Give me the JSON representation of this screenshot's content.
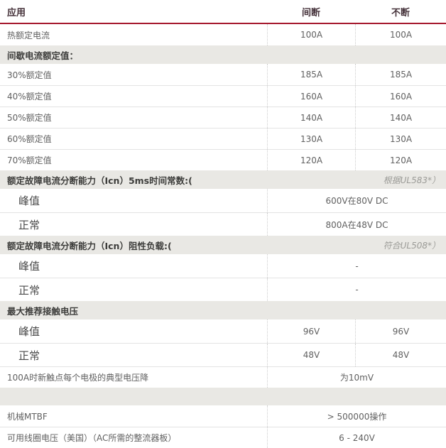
{
  "table": {
    "accent_red": "#a6192e",
    "section_bg": "#e9e8e4",
    "header": {
      "application": "应用",
      "intermittent": "间断",
      "continuous": "不断"
    },
    "rows": [
      {
        "type": "data",
        "label": "热额定电流",
        "values": [
          "100A",
          "100A"
        ]
      },
      {
        "type": "section",
        "label": "间歇电流额定值：",
        "note": ""
      },
      {
        "type": "data",
        "label": "30%额定值",
        "values": [
          "185A",
          "185A"
        ]
      },
      {
        "type": "data",
        "label": "40%额定值",
        "values": [
          "160A",
          "160A"
        ]
      },
      {
        "type": "data",
        "label": "50%额定值",
        "values": [
          "140A",
          "140A"
        ]
      },
      {
        "type": "data",
        "label": "60%额定值",
        "values": [
          "130A",
          "130A"
        ]
      },
      {
        "type": "data",
        "label": "70%额定值",
        "values": [
          "120A",
          "120A"
        ]
      },
      {
        "type": "section",
        "label": "额定故障电流分断能力（Icn）5ms时间常数:(",
        "note": "根据UL583*）"
      },
      {
        "type": "big",
        "label": "峰值",
        "merged": "600V在80V DC"
      },
      {
        "type": "big",
        "label": "正常",
        "merged": "800A在48V DC"
      },
      {
        "type": "section",
        "label": "额定故障电流分断能力（Icn）阻性负载:(",
        "note": "符合UL508*）"
      },
      {
        "type": "big",
        "label": "峰值",
        "merged": "-"
      },
      {
        "type": "big",
        "label": "正常",
        "merged": "-"
      },
      {
        "type": "section",
        "label": "最大推荐接触电压",
        "note": ""
      },
      {
        "type": "big",
        "label": "峰值",
        "values": [
          "96V",
          "96V"
        ]
      },
      {
        "type": "big",
        "label": "正常",
        "values": [
          "48V",
          "48V"
        ]
      },
      {
        "type": "data",
        "label": "100A时新触点每个电极的典型电压降",
        "merged": "为10mV"
      },
      {
        "type": "section",
        "label": "",
        "note": ""
      },
      {
        "type": "data",
        "label": "机械MTBF",
        "merged": "> 500000操作"
      },
      {
        "type": "data",
        "label": "可用线圈电压（美国）（AC所需的整流器板）",
        "merged": "6 - 240V"
      }
    ]
  }
}
